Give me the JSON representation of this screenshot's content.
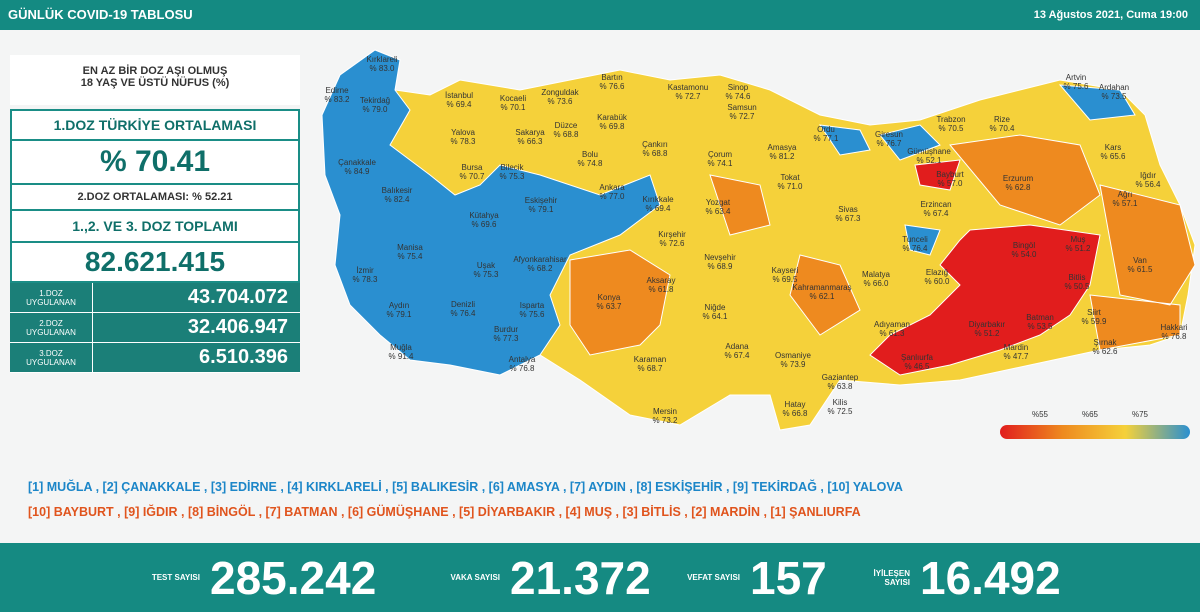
{
  "header": {
    "title": "GÜNLÜK COVID-19 TABLOSU",
    "date": "13 Ağustos 2021, Cuma 19:00"
  },
  "panel": {
    "heading": [
      "EN AZ BİR DOZ AŞI OLMUŞ",
      "18 YAŞ VE ÜSTÜ NÜFUS (%)"
    ],
    "dose1_title": "1.DOZ TÜRKİYE ORTALAMASI",
    "dose1_value": "% 70.41",
    "dose2_text": "2.DOZ ORTALAMASI: % 52.21",
    "total_title": "1.,2. VE 3. DOZ TOPLAMI",
    "total_value": "82.621.415",
    "rows": [
      {
        "label": "1.DOZ UYGULANAN",
        "value": "43.704.072"
      },
      {
        "label": "2.DOZ UYGULANAN",
        "value": "32.406.947"
      },
      {
        "label": "3.DOZ UYGULANAN",
        "value": "6.510.396"
      }
    ]
  },
  "map": {
    "provinces": [
      {
        "name": "Kırklareli",
        "label": "% 83.0"
      },
      {
        "name": "Edirne",
        "label": "% 83.2"
      },
      {
        "name": "Tekirdağ",
        "label": "% 79.0"
      },
      {
        "name": "İstanbul",
        "label": "% 69.4"
      },
      {
        "name": "Kocaeli",
        "label": "% 70.1"
      },
      {
        "name": "Zonguldak",
        "label": "% 73.6"
      },
      {
        "name": "Bartın",
        "label": "% 76.6"
      },
      {
        "name": "Kastamonu",
        "label": "% 72.7"
      },
      {
        "name": "Sinop",
        "label": "% 74.6"
      },
      {
        "name": "Artvin",
        "label": "% 75.6"
      },
      {
        "name": "Ardahan",
        "label": "% 73.5"
      },
      {
        "name": "Yalova",
        "label": "% 78.3"
      },
      {
        "name": "Sakarya",
        "label": "% 66.3"
      },
      {
        "name": "Düzce",
        "label": "% 68.8"
      },
      {
        "name": "Karabük",
        "label": "% 69.8"
      },
      {
        "name": "Samsun",
        "label": "% 72.7"
      },
      {
        "name": "Ordu",
        "label": "% 77.1"
      },
      {
        "name": "Giresun",
        "label": "% 76.7"
      },
      {
        "name": "Trabzon",
        "label": "% 70.5"
      },
      {
        "name": "Rize",
        "label": "% 70.4"
      },
      {
        "name": "Kars",
        "label": "% 65.6"
      },
      {
        "name": "Çanakkale",
        "label": "% 84.9"
      },
      {
        "name": "Bursa",
        "label": "% 70.7"
      },
      {
        "name": "Bilecik",
        "label": "% 75.3"
      },
      {
        "name": "Bolu",
        "label": "% 74.8"
      },
      {
        "name": "Çankırı",
        "label": "% 68.8"
      },
      {
        "name": "Çorum",
        "label": "% 74.1"
      },
      {
        "name": "Amasya",
        "label": "% 81.2"
      },
      {
        "name": "Gümüşhane",
        "label": "% 52.1"
      },
      {
        "name": "Bayburt",
        "label": "% 57.0"
      },
      {
        "name": "Erzurum",
        "label": "% 62.8"
      },
      {
        "name": "Iğdır",
        "label": "% 56.4"
      },
      {
        "name": "Ağrı",
        "label": "% 57.1"
      },
      {
        "name": "Balıkesir",
        "label": "% 82.4"
      },
      {
        "name": "Kütahya",
        "label": "% 69.6"
      },
      {
        "name": "Eskişehir",
        "label": "% 79.1"
      },
      {
        "name": "Ankara",
        "label": "% 77.0"
      },
      {
        "name": "Kırıkkale",
        "label": "% 69.4"
      },
      {
        "name": "Tokat",
        "label": "% 71.0"
      },
      {
        "name": "Yozgat",
        "label": "% 63.4"
      },
      {
        "name": "Sivas",
        "label": "% 67.3"
      },
      {
        "name": "Erzincan",
        "label": "% 67.4"
      },
      {
        "name": "Tunceli",
        "label": "% 76.4"
      },
      {
        "name": "Bingöl",
        "label": "% 54.0"
      },
      {
        "name": "Muş",
        "label": "% 51.2"
      },
      {
        "name": "Van",
        "label": "% 61.5"
      },
      {
        "name": "Manisa",
        "label": "% 75.4"
      },
      {
        "name": "Uşak",
        "label": "% 75.3"
      },
      {
        "name": "Afyonkarahisar",
        "label": "% 68.2"
      },
      {
        "name": "Kırşehir",
        "label": "% 72.6"
      },
      {
        "name": "Nevşehir",
        "label": "% 68.9"
      },
      {
        "name": "Kayseri",
        "label": "% 69.5"
      },
      {
        "name": "Malatya",
        "label": "% 66.0"
      },
      {
        "name": "Elazığ",
        "label": "% 60.0"
      },
      {
        "name": "Bitlis",
        "label": "% 50.5"
      },
      {
        "name": "İzmir",
        "label": "% 78.3"
      },
      {
        "name": "Aydın",
        "label": "% 79.1"
      },
      {
        "name": "Denizli",
        "label": "% 76.4"
      },
      {
        "name": "Isparta",
        "label": "% 75.6"
      },
      {
        "name": "Konya",
        "label": "% 63.7"
      },
      {
        "name": "Aksaray",
        "label": "% 61.8"
      },
      {
        "name": "Niğde",
        "label": "% 64.1"
      },
      {
        "name": "Kahramanmaraş",
        "label": "% 62.1"
      },
      {
        "name": "Adıyaman",
        "label": "% 61.3"
      },
      {
        "name": "Diyarbakır",
        "label": "% 51.2"
      },
      {
        "name": "Batman",
        "label": "% 53.5"
      },
      {
        "name": "Siirt",
        "label": "% 59.9"
      },
      {
        "name": "Hakkari",
        "label": "% 76.8"
      },
      {
        "name": "Muğla",
        "label": "% 91.4"
      },
      {
        "name": "Burdur",
        "label": "% 77.3"
      },
      {
        "name": "Antalya",
        "label": "% 76.8"
      },
      {
        "name": "Karaman",
        "label": "% 68.7"
      },
      {
        "name": "Adana",
        "label": "% 67.4"
      },
      {
        "name": "Osmaniye",
        "label": "% 73.9"
      },
      {
        "name": "Gaziantep",
        "label": "% 63.8"
      },
      {
        "name": "Şanlıurfa",
        "label": "% 46.5"
      },
      {
        "name": "Mardin",
        "label": "% 47.7"
      },
      {
        "name": "Şırnak",
        "label": "% 62.6"
      },
      {
        "name": "Mersin",
        "label": "% 73.2"
      },
      {
        "name": "Hatay",
        "label": "% 66.8"
      },
      {
        "name": "Kilis",
        "label": "% 72.5"
      }
    ],
    "legend": [
      "%55",
      "%65",
      "%75"
    ]
  },
  "rankings": {
    "top": "[1] MUĞLA , [2] ÇANAKKALE , [3] EDİRNE , [4] KIRKLARELİ , [5] BALIKESİR , [6] AMASYA , [7] AYDIN , [8] ESKİŞEHİR , [9] TEKİRDAĞ , [10] YALOVA",
    "bottom": "[10] BAYBURT , [9] IĞDIR , [8] BİNGÖL , [7] BATMAN , [6] GÜMÜŞHANE , [5] DİYARBAKIR , [4] MUŞ , [3] BİTLİS , [2] MARDİN , [1] ŞANLIURFA"
  },
  "stats": [
    {
      "label": "TEST SAYISI",
      "value": "285.242"
    },
    {
      "label": "VAKA SAYISI",
      "value": "21.372"
    },
    {
      "label": "VEFAT SAYISI",
      "value": "157"
    },
    {
      "label": "İYİLEŞEN SAYISI",
      "value": "16.492"
    }
  ]
}
